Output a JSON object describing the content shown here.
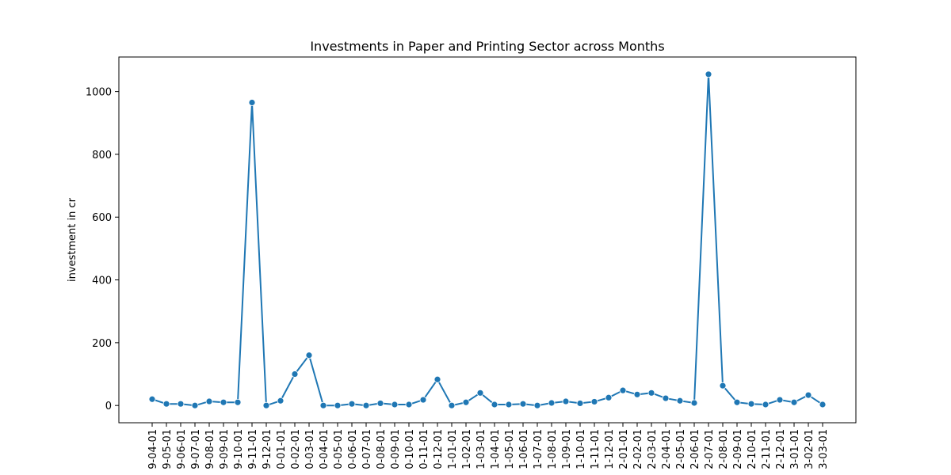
{
  "chart_data": {
    "type": "line",
    "title": "Investments in Paper and Printing Sector across Months",
    "xlabel": "",
    "ylabel": "investment in cr",
    "ylim": [
      -55,
      1110
    ],
    "yticks": [
      0,
      200,
      400,
      600,
      800,
      1000
    ],
    "grid": false,
    "color": "#1f77b4",
    "categories": [
      "9-04-01",
      "9-05-01",
      "9-06-01",
      "9-07-01",
      "9-08-01",
      "9-09-01",
      "9-10-01",
      "9-11-01",
      "9-12-01",
      "0-01-01",
      "0-02-01",
      "0-03-01",
      "0-04-01",
      "0-05-01",
      "0-06-01",
      "0-07-01",
      "0-08-01",
      "0-09-01",
      "0-10-01",
      "0-11-01",
      "0-12-01",
      "1-01-01",
      "1-02-01",
      "1-03-01",
      "1-04-01",
      "1-05-01",
      "1-06-01",
      "1-07-01",
      "1-08-01",
      "1-09-01",
      "1-10-01",
      "1-11-01",
      "1-12-01",
      "2-01-01",
      "2-02-01",
      "2-03-01",
      "2-04-01",
      "2-05-01",
      "2-06-01",
      "2-07-01",
      "2-08-01",
      "2-09-01",
      "2-10-01",
      "2-11-01",
      "2-12-01",
      "3-01-01",
      "3-02-01",
      "3-03-01"
    ],
    "values": [
      20,
      5,
      5,
      0,
      13,
      10,
      10,
      965,
      0,
      15,
      100,
      160,
      0,
      0,
      5,
      0,
      7,
      3,
      3,
      18,
      83,
      0,
      10,
      40,
      3,
      3,
      5,
      0,
      8,
      13,
      7,
      12,
      25,
      48,
      35,
      40,
      23,
      15,
      8,
      1055,
      63,
      10,
      5,
      3,
      18,
      10,
      33,
      3
    ]
  }
}
